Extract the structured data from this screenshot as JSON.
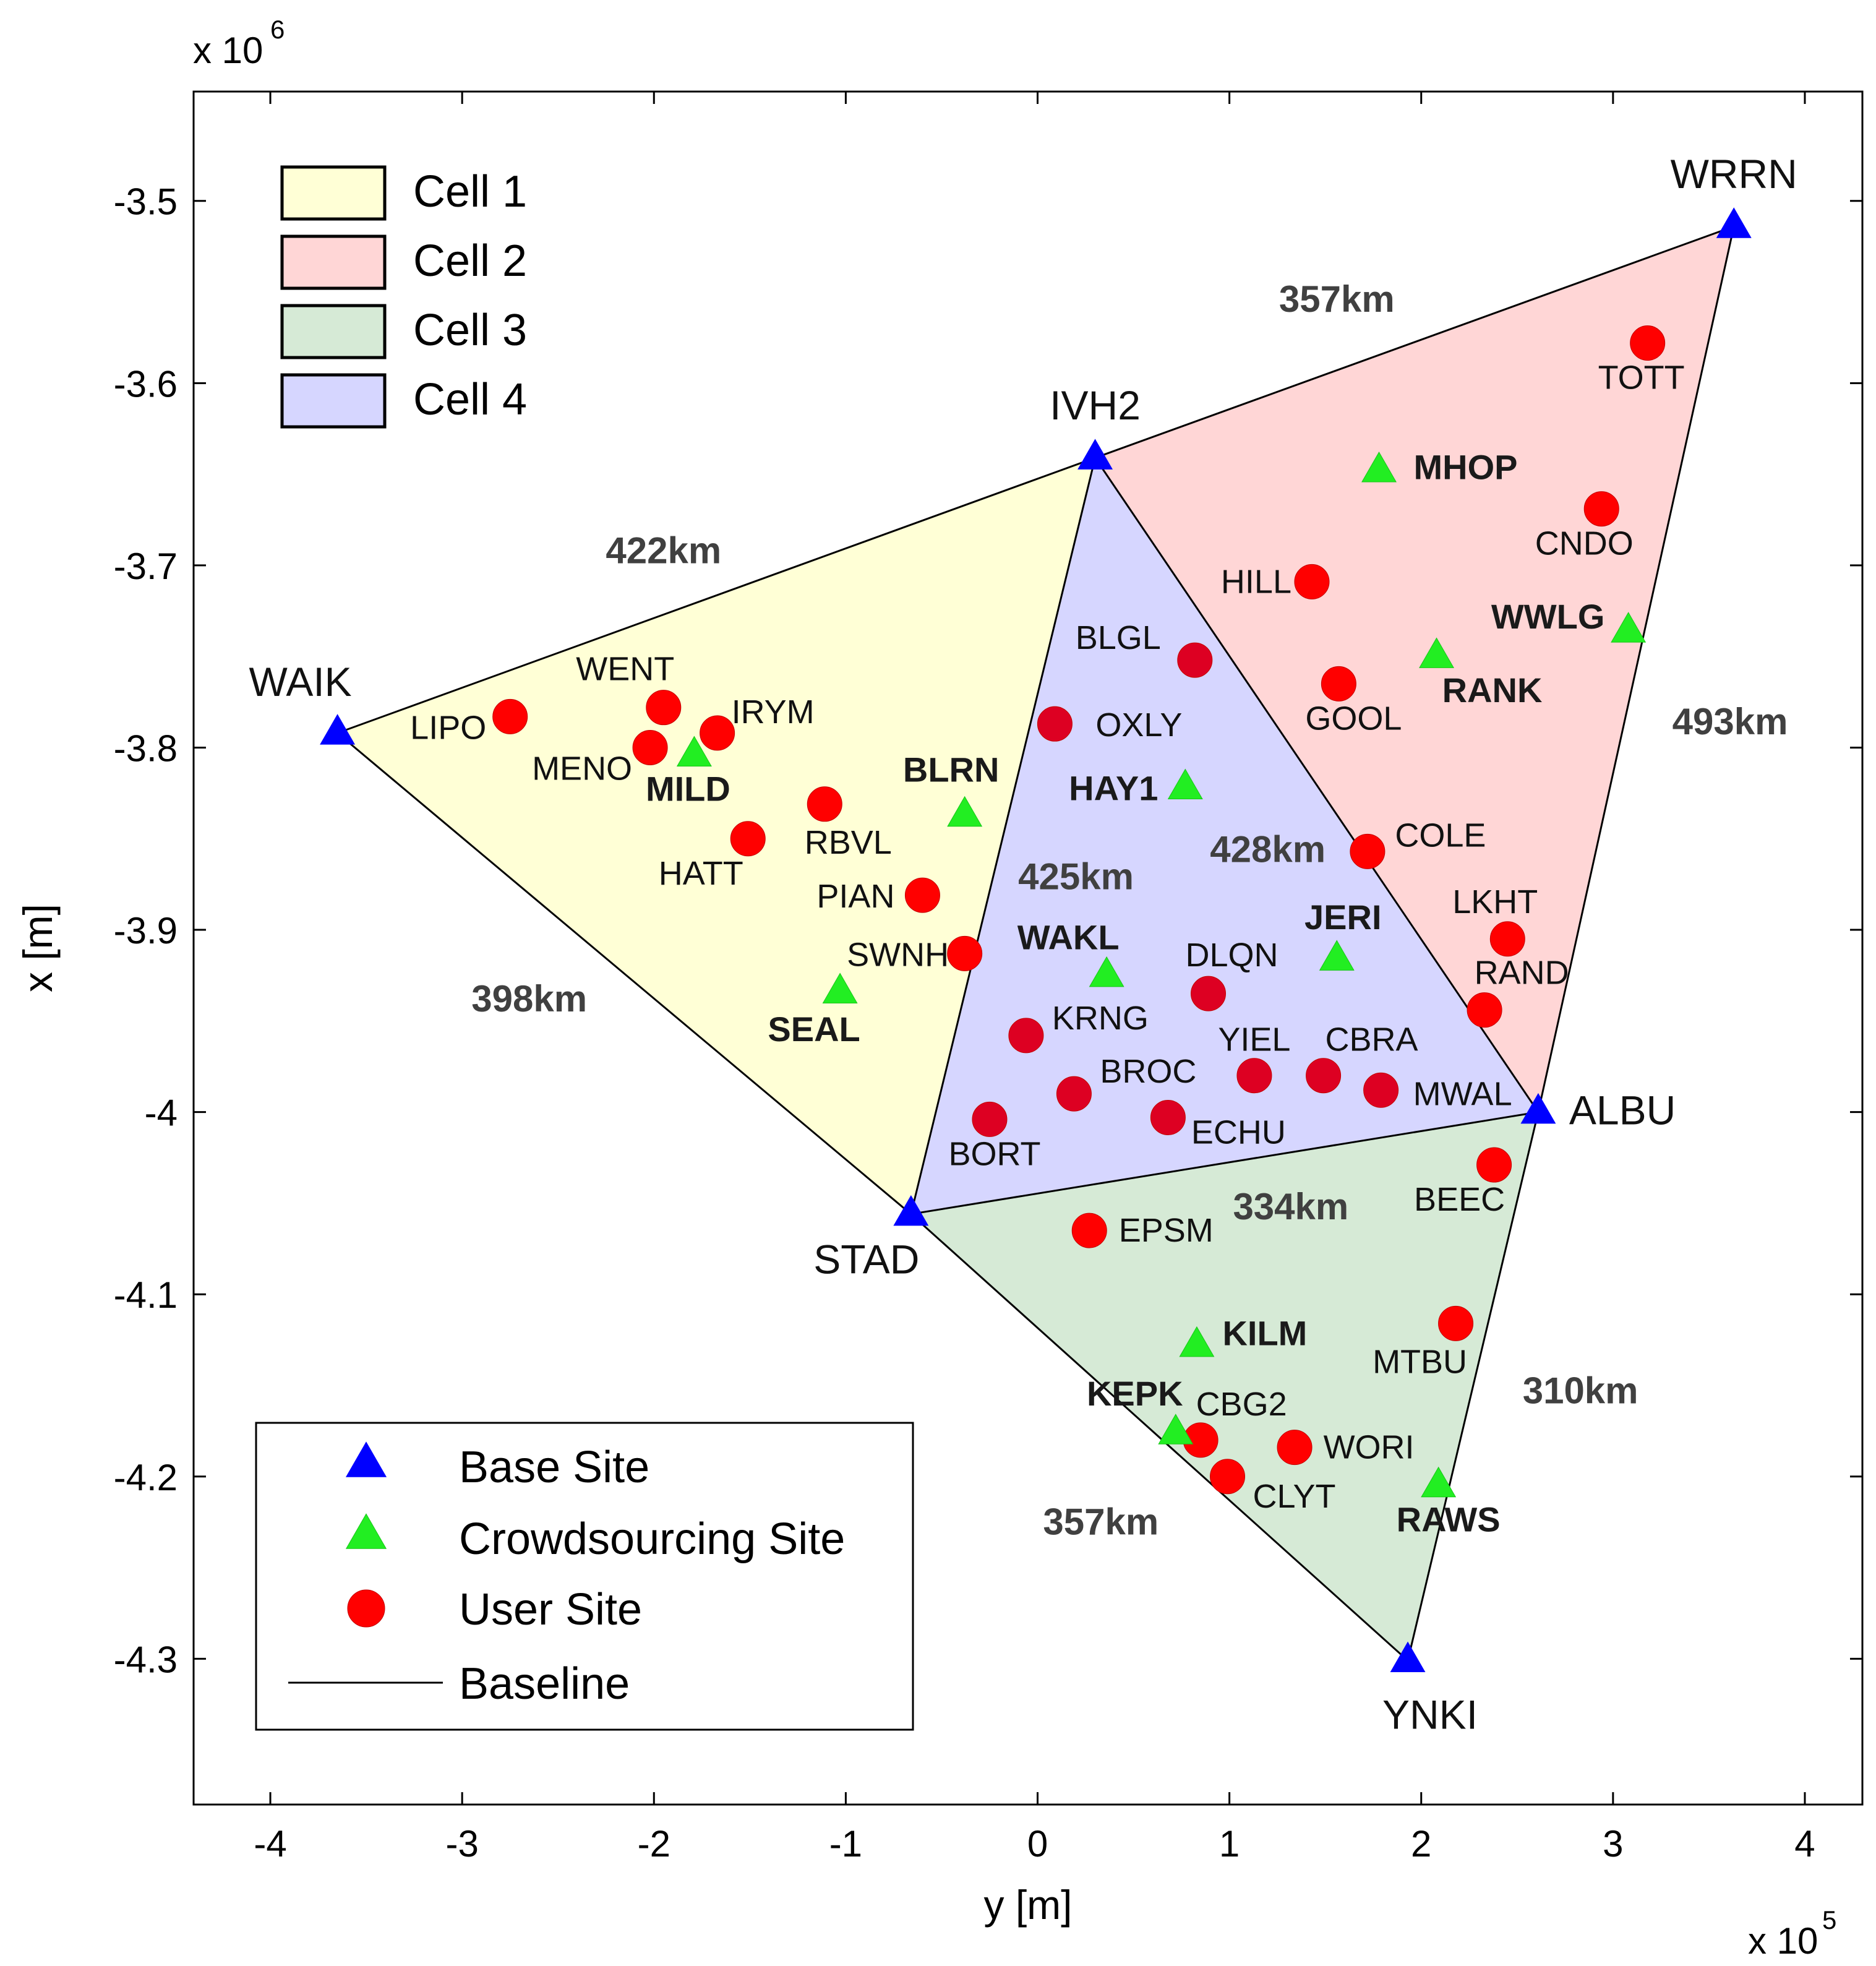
{
  "chart_data": {
    "type": "scatter",
    "title": "",
    "xlabel": "y [m]",
    "ylabel": "x [m]",
    "x_scale_label": "x 10",
    "x_scale_exp": "5",
    "y_scale_label": "x 10",
    "y_scale_exp": "6",
    "xlim": [
      -4.4,
      4.3
    ],
    "ylim": [
      -4.38,
      -3.44
    ],
    "xticks": [
      -4,
      -3,
      -2,
      -1,
      0,
      1,
      2,
      3,
      4
    ],
    "xtick_labels": [
      "-4",
      "-3",
      "-2",
      "-1",
      "0",
      "1",
      "2",
      "3",
      "4"
    ],
    "yticks": [
      -3.5,
      -3.6,
      -3.7,
      -3.8,
      -3.9,
      -4.0,
      -4.1,
      -4.2,
      -4.3
    ],
    "ytick_labels": [
      "-3.5",
      "-3.6",
      "-3.7",
      "-3.8",
      "-3.9",
      "-4",
      "-4.1",
      "-4.2",
      "-4.3"
    ],
    "colors": {
      "base": "#0000ff",
      "crowd": "#22ee22",
      "user": "#ff0000",
      "user_cell4": "#dd0022",
      "cell1": "#ffffd6",
      "cell2": "#ffd6d6",
      "cell3": "#d6ead6",
      "cell4": "#d6d6ff",
      "distance_label": "#404040"
    },
    "cells": [
      {
        "name": "Cell 1",
        "fill": "#ffffd6",
        "vertices": [
          "WAIK",
          "IVH2",
          "STAD"
        ]
      },
      {
        "name": "Cell 2",
        "fill": "#ffd6d6",
        "vertices": [
          "IVH2",
          "WRRN",
          "ALBU"
        ]
      },
      {
        "name": "Cell 3",
        "fill": "#d6ead6",
        "vertices": [
          "STAD",
          "ALBU",
          "YNKI"
        ]
      },
      {
        "name": "Cell 4",
        "fill": "#d6d6ff",
        "vertices": [
          "IVH2",
          "ALBU",
          "STAD"
        ]
      }
    ],
    "baselines": [
      [
        "WAIK",
        "IVH2"
      ],
      [
        "IVH2",
        "WRRN"
      ],
      [
        "WRRN",
        "ALBU"
      ],
      [
        "ALBU",
        "YNKI"
      ],
      [
        "YNKI",
        "STAD"
      ],
      [
        "STAD",
        "WAIK"
      ],
      [
        "IVH2",
        "STAD"
      ],
      [
        "IVH2",
        "ALBU"
      ],
      [
        "STAD",
        "ALBU"
      ]
    ],
    "base_sites": [
      {
        "name": "WAIK",
        "x": -3.65,
        "y": -3.792
      },
      {
        "name": "IVH2",
        "x": 0.3,
        "y": -3.641
      },
      {
        "name": "WRRN",
        "x": 3.63,
        "y": -3.514
      },
      {
        "name": "STAD",
        "x": -0.66,
        "y": -4.056
      },
      {
        "name": "ALBU",
        "x": 2.61,
        "y": -4.0
      },
      {
        "name": "YNKI",
        "x": 1.93,
        "y": -4.301
      }
    ],
    "crowd_sites": [
      {
        "name": "MILD",
        "x": -1.79,
        "y": -3.804
      },
      {
        "name": "BLRN",
        "x": -0.38,
        "y": -3.837
      },
      {
        "name": "SEAL",
        "x": -1.03,
        "y": -3.934
      },
      {
        "name": "HAY1",
        "x": 0.77,
        "y": -3.822
      },
      {
        "name": "WAKL",
        "x": 0.36,
        "y": -3.925
      },
      {
        "name": "JERI",
        "x": 1.56,
        "y": -3.916
      },
      {
        "name": "MHOP",
        "x": 1.78,
        "y": -3.648
      },
      {
        "name": "WWLG",
        "x": 3.08,
        "y": -3.736
      },
      {
        "name": "RANK",
        "x": 2.08,
        "y": -3.75
      },
      {
        "name": "KILM",
        "x": 0.83,
        "y": -4.128
      },
      {
        "name": "KEPK",
        "x": 0.72,
        "y": -4.176
      },
      {
        "name": "RAWS",
        "x": 2.09,
        "y": -4.205
      }
    ],
    "user_sites": [
      {
        "name": "LIPO",
        "x": -2.75,
        "y": -3.783
      },
      {
        "name": "WENT",
        "x": -1.95,
        "y": -3.778
      },
      {
        "name": "MENO",
        "x": -2.02,
        "y": -3.8
      },
      {
        "name": "IRYM",
        "x": -1.67,
        "y": -3.792
      },
      {
        "name": "RBVL",
        "x": -1.11,
        "y": -3.831
      },
      {
        "name": "HATT",
        "x": -1.51,
        "y": -3.85
      },
      {
        "name": "PIAN",
        "x": -0.6,
        "y": -3.881
      },
      {
        "name": "SWNH",
        "x": -0.38,
        "y": -3.913
      },
      {
        "name": "BLGL",
        "x": 0.82,
        "y": -3.752
      },
      {
        "name": "OXLY",
        "x": 0.09,
        "y": -3.787
      },
      {
        "name": "DLQN",
        "x": 0.89,
        "y": -3.935
      },
      {
        "name": "KRNG",
        "x": -0.06,
        "y": -3.958
      },
      {
        "name": "YIEL",
        "x": 1.13,
        "y": -3.98
      },
      {
        "name": "CBRA",
        "x": 1.49,
        "y": -3.98
      },
      {
        "name": "BROC",
        "x": 0.19,
        "y": -3.99
      },
      {
        "name": "MWAL",
        "x": 1.79,
        "y": -3.988
      },
      {
        "name": "ECHU",
        "x": 0.68,
        "y": -4.003
      },
      {
        "name": "BORT",
        "x": -0.25,
        "y": -4.004
      },
      {
        "name": "HILL",
        "x": 1.43,
        "y": -3.709
      },
      {
        "name": "GOOL",
        "x": 1.57,
        "y": -3.765
      },
      {
        "name": "COLE",
        "x": 1.72,
        "y": -3.857
      },
      {
        "name": "LKHT",
        "x": 2.45,
        "y": -3.905
      },
      {
        "name": "RAND",
        "x": 2.33,
        "y": -3.944
      },
      {
        "name": "TOTT",
        "x": 3.18,
        "y": -3.578
      },
      {
        "name": "CNDO",
        "x": 2.94,
        "y": -3.669
      },
      {
        "name": "BEEC",
        "x": 2.38,
        "y": -4.029
      },
      {
        "name": "EPSM",
        "x": 0.27,
        "y": -4.065
      },
      {
        "name": "MTBU",
        "x": 2.18,
        "y": -4.116
      },
      {
        "name": "CBG2",
        "x": 0.85,
        "y": -4.18
      },
      {
        "name": "WORI",
        "x": 1.34,
        "y": -4.184
      },
      {
        "name": "CLYT",
        "x": 0.99,
        "y": -4.2
      }
    ],
    "distances": [
      {
        "label": "357km",
        "x": 1.56,
        "y": -3.554
      },
      {
        "label": "422km",
        "x": -1.95,
        "y": -3.692
      },
      {
        "label": "493km",
        "x": 3.61,
        "y": -3.786
      },
      {
        "label": "425km",
        "x": 0.2,
        "y": -3.871
      },
      {
        "label": "428km",
        "x": 1.2,
        "y": -3.856
      },
      {
        "label": "398km",
        "x": -2.65,
        "y": -3.938
      },
      {
        "label": "334km",
        "x": 1.32,
        "y": -4.052
      },
      {
        "label": "310km",
        "x": 2.83,
        "y": -4.153
      },
      {
        "label": "357km",
        "x": 0.33,
        "y": -4.225
      }
    ],
    "legend_cells": [
      "Cell 1",
      "Cell 2",
      "Cell 3",
      "Cell 4"
    ],
    "legend_sites": [
      "Base Site",
      "Crowdsourcing Site",
      "User Site",
      "Baseline"
    ]
  }
}
